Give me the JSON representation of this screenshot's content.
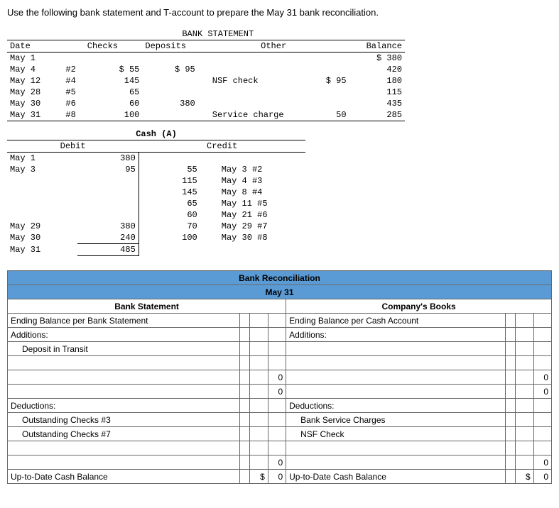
{
  "instruction": "Use the following bank statement and T-account to prepare the May 31 bank reconciliation.",
  "bank_statement": {
    "title": "BANK STATEMENT",
    "headers": {
      "date": "Date",
      "checks": "Checks",
      "deposits": "Deposits",
      "other": "Other",
      "balance": "Balance"
    },
    "rows": [
      {
        "date": "May 1",
        "check_no": "",
        "check_amt": "",
        "deposit": "",
        "other_desc": "",
        "other_amt": "",
        "balance": "$ 380"
      },
      {
        "date": "May 4",
        "check_no": "#2",
        "check_amt": "$ 55",
        "deposit": "$ 95",
        "other_desc": "",
        "other_amt": "",
        "balance": "420"
      },
      {
        "date": "May 12",
        "check_no": "#4",
        "check_amt": "145",
        "deposit": "",
        "other_desc": "NSF check",
        "other_amt": "$ 95",
        "balance": "180"
      },
      {
        "date": "May 28",
        "check_no": "#5",
        "check_amt": "65",
        "deposit": "",
        "other_desc": "",
        "other_amt": "",
        "balance": "115"
      },
      {
        "date": "May 30",
        "check_no": "#6",
        "check_amt": "60",
        "deposit": "380",
        "other_desc": "",
        "other_amt": "",
        "balance": "435"
      },
      {
        "date": "May 31",
        "check_no": "#8",
        "check_amt": "100",
        "deposit": "",
        "other_desc": "Service charge",
        "other_amt": "50",
        "balance": "285"
      }
    ]
  },
  "t_account": {
    "title": "Cash (A)",
    "debit_label": "Debit",
    "credit_label": "Credit",
    "rows": [
      {
        "d_date": "May 1",
        "d_amt": "380",
        "c_amt": "",
        "c_date": ""
      },
      {
        "d_date": "May 3",
        "d_amt": "95",
        "c_amt": "55",
        "c_date": "May 3 #2"
      },
      {
        "d_date": "",
        "d_amt": "",
        "c_amt": "115",
        "c_date": "May 4 #3"
      },
      {
        "d_date": "",
        "d_amt": "",
        "c_amt": "145",
        "c_date": "May 8 #4"
      },
      {
        "d_date": "",
        "d_amt": "",
        "c_amt": "65",
        "c_date": "May 11 #5"
      },
      {
        "d_date": "",
        "d_amt": "",
        "c_amt": "60",
        "c_date": "May 21 #6"
      },
      {
        "d_date": "May 29",
        "d_amt": "380",
        "c_amt": "70",
        "c_date": "May 29 #7"
      },
      {
        "d_date": "May 30",
        "d_amt": "240",
        "c_amt": "100",
        "c_date": "May 30 #8"
      },
      {
        "d_date": "May 31",
        "d_amt": "485",
        "c_amt": "",
        "c_date": ""
      }
    ]
  },
  "reconciliation": {
    "title": "Bank Reconciliation",
    "date": "May 31",
    "bank_side": {
      "title": "Bank Statement",
      "ending": "Ending Balance per Bank Statement",
      "additions": "Additions:",
      "deposit_transit": "Deposit in Transit",
      "deductions": "Deductions:",
      "out3": "Outstanding Checks #3",
      "out7": "Outstanding Checks #7",
      "uptodate": "Up-to-Date Cash Balance"
    },
    "book_side": {
      "title": "Company's Books",
      "ending": "Ending Balance per Cash Account",
      "additions": "Additions:",
      "deductions": "Deductions:",
      "service": "Bank Service Charges",
      "nsf": "NSF Check",
      "uptodate": "Up-to-Date Cash Balance"
    },
    "zero": "0",
    "dollar": "$",
    "dollar_zero_amt": "0"
  }
}
